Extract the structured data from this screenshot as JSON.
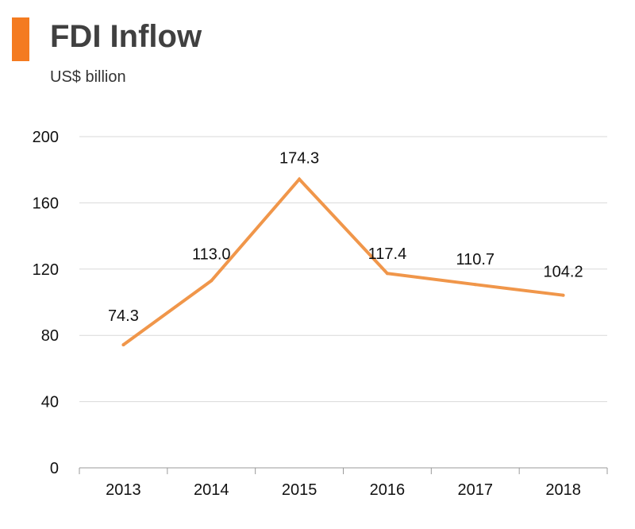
{
  "title": "FDI Inflow",
  "subtitle": "US$ billion",
  "colors": {
    "accent": "#f47b20",
    "line": "#f0964a",
    "grid": "#d9d9d9",
    "axis": "#9a9a9a"
  },
  "chart_data": {
    "type": "line",
    "title": "FDI Inflow",
    "subtitle": "US$ billion",
    "xlabel": "",
    "ylabel": "",
    "categories": [
      "2013",
      "2014",
      "2015",
      "2016",
      "2017",
      "2018"
    ],
    "series": [
      {
        "values": [
          74.3,
          113.0,
          174.3,
          117.4,
          110.7,
          104.2
        ],
        "labels": [
          "74.3",
          "113.0",
          "174.3",
          "117.4",
          "110.7",
          "104.2"
        ]
      }
    ],
    "ylim": [
      0,
      200
    ],
    "yticks": [
      0,
      40,
      80,
      120,
      160,
      200
    ],
    "grid": true,
    "legend": "none"
  }
}
